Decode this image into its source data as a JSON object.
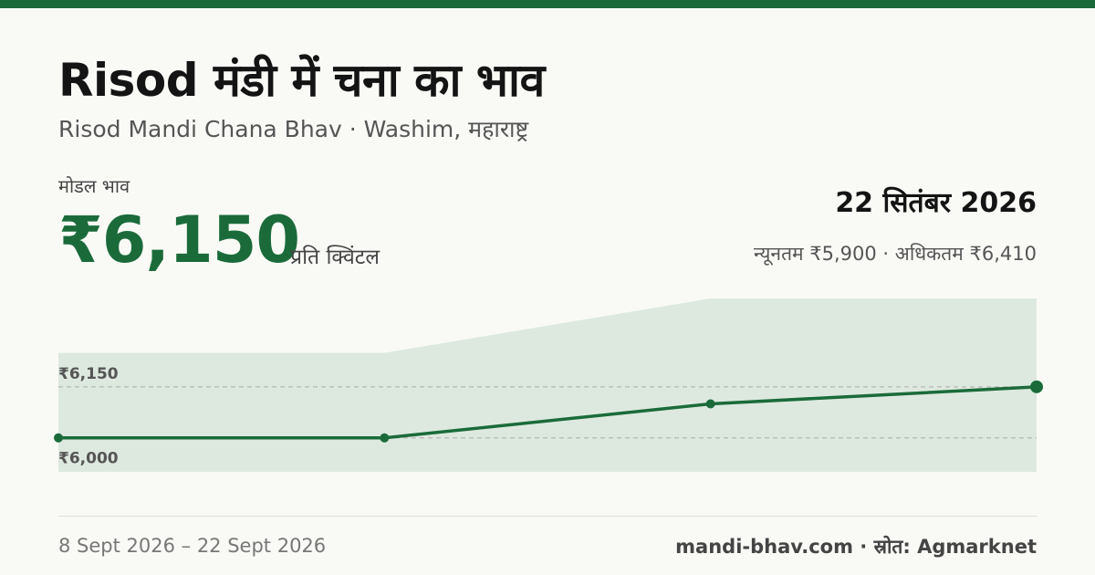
{
  "header": {
    "title": "Risod मंडी में चना का भाव",
    "subtitle": "Risod Mandi Chana Bhav · Washim, महाराष्ट्र"
  },
  "price": {
    "modal_label": "मोडल भाव",
    "modal_value": "₹6,150",
    "unit": "प्रति क्विंटल",
    "date": "22 सितंबर 2026",
    "min_max": "न्यूनतम ₹5,900 · अधिकतम ₹6,410"
  },
  "footer": {
    "date_range": "8 Sept 2026 – 22 Sept 2026",
    "source": "mandi-bhav.com · स्रोत: Agmarknet"
  },
  "colors": {
    "accent": "#1b6b3a",
    "band_fill": "#dde9df",
    "reference_line": "#b7b7b0"
  },
  "chart_data": {
    "type": "line",
    "x": [
      "2026-09-08",
      "2026-09-13",
      "2026-09-18",
      "2026-09-22"
    ],
    "series": [
      {
        "values": [
          6000,
          6000,
          6100,
          6150
        ]
      }
    ],
    "band": {
      "min": [
        5900,
        5900,
        5900,
        5900
      ],
      "max": [
        6250,
        6250,
        6410,
        6410
      ]
    },
    "reference_lines": [
      {
        "value": 6150,
        "label": "₹6,150"
      },
      {
        "value": 6000,
        "label": "₹6,000"
      }
    ],
    "ylim": [
      5900,
      6410
    ],
    "grid": false
  }
}
